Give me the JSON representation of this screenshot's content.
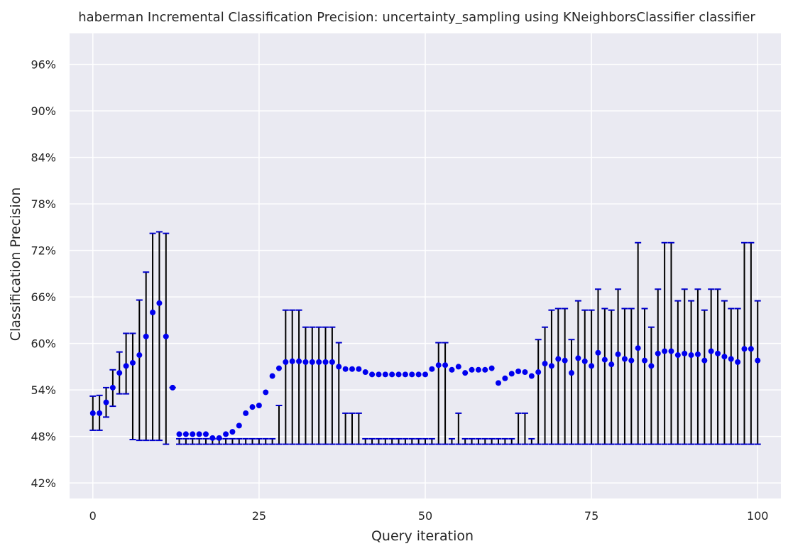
{
  "chart_data": {
    "type": "scatter",
    "title": "haberman Incremental Classification Precision: uncertainty_sampling using KNeighborsClassifier classifier",
    "xlabel": "Query iteration",
    "ylabel": "Classification Precision",
    "xlim": [
      -3.5,
      103.5
    ],
    "ylim": [
      0.4,
      1.0
    ],
    "xticks": [
      0,
      25,
      50,
      75,
      100
    ],
    "yticks": [
      0.42,
      0.48,
      0.54,
      0.6,
      0.66,
      0.72,
      0.78,
      0.84,
      0.9,
      0.96
    ],
    "ytick_format": "percent",
    "grid": true,
    "legend": "none",
    "colors": {
      "background": "#eaeaf2",
      "grid": "#ffffff",
      "marker": "#0000ee",
      "errorbar": "#000000",
      "cap": "#0000cc"
    },
    "series": [
      {
        "x": [
          0,
          1,
          2,
          3,
          4,
          5,
          6,
          7,
          8,
          9,
          10,
          11,
          12,
          13,
          14,
          15,
          16,
          17,
          18,
          19,
          20,
          21,
          22,
          23,
          24,
          25,
          26,
          27,
          28,
          29,
          30,
          31,
          32,
          33,
          34,
          35,
          36,
          37,
          38,
          39,
          40,
          41,
          42,
          43,
          44,
          45,
          46,
          47,
          48,
          49,
          50,
          51,
          52,
          53,
          54,
          55,
          56,
          57,
          58,
          59,
          60,
          61,
          62,
          63,
          64,
          65,
          66,
          67,
          68,
          69,
          70,
          71,
          72,
          73,
          74,
          75,
          76,
          77,
          78,
          79,
          80,
          81,
          82,
          83,
          84,
          85,
          86,
          87,
          88,
          89,
          90,
          91,
          92,
          93,
          94,
          95,
          96,
          97,
          98,
          99,
          100
        ],
        "y": [
          0.51,
          0.51,
          0.524,
          0.543,
          0.562,
          0.571,
          0.575,
          0.585,
          0.609,
          0.64,
          0.652,
          0.609,
          0.543,
          0.483,
          0.483,
          0.483,
          0.483,
          0.483,
          0.478,
          0.478,
          0.483,
          0.486,
          0.494,
          0.51,
          0.518,
          0.52,
          0.537,
          0.558,
          0.568,
          0.576,
          0.577,
          0.577,
          0.576,
          0.576,
          0.576,
          0.576,
          0.576,
          0.57,
          0.567,
          0.567,
          0.567,
          0.563,
          0.56,
          0.56,
          0.56,
          0.56,
          0.56,
          0.56,
          0.56,
          0.56,
          0.56,
          0.567,
          0.572,
          0.572,
          0.566,
          0.57,
          0.562,
          0.566,
          0.566,
          0.566,
          0.568,
          0.549,
          0.555,
          0.561,
          0.564,
          0.563,
          0.558,
          0.563,
          0.574,
          0.571,
          0.58,
          0.578,
          0.562,
          0.581,
          0.577,
          0.571,
          0.588,
          0.579,
          0.573,
          0.586,
          0.58,
          0.578,
          0.594,
          0.578,
          0.571,
          0.587,
          0.59,
          0.59,
          0.585,
          0.587,
          0.585,
          0.586,
          0.578,
          0.59,
          0.587,
          0.583,
          0.58,
          0.576,
          0.593,
          0.593,
          0.578
        ],
        "err_lower": [
          0.488,
          0.488,
          0.505,
          0.519,
          0.535,
          0.535,
          0.476,
          0.475,
          0.475,
          0.475,
          0.475,
          0.47,
          0.543,
          0.47,
          0.47,
          0.47,
          0.47,
          0.47,
          0.47,
          0.47,
          0.47,
          0.47,
          0.47,
          0.47,
          0.47,
          0.47,
          0.47,
          0.47,
          0.47,
          0.47,
          0.47,
          0.47,
          0.47,
          0.47,
          0.47,
          0.47,
          0.47,
          0.47,
          0.47,
          0.47,
          0.47,
          0.47,
          0.47,
          0.47,
          0.47,
          0.47,
          0.47,
          0.47,
          0.47,
          0.47,
          0.47,
          0.47,
          0.47,
          0.47,
          0.47,
          0.47,
          0.47,
          0.47,
          0.47,
          0.47,
          0.47,
          0.47,
          0.47,
          0.47,
          0.47,
          0.47,
          0.47,
          0.47,
          0.47,
          0.47,
          0.47,
          0.47,
          0.47,
          0.47,
          0.47,
          0.47,
          0.47,
          0.47,
          0.47,
          0.47,
          0.47,
          0.47,
          0.47,
          0.47,
          0.47,
          0.47,
          0.47,
          0.47,
          0.47,
          0.47,
          0.47,
          0.47,
          0.47,
          0.47,
          0.47,
          0.47,
          0.47,
          0.47,
          0.47,
          0.47,
          0.47
        ],
        "err_upper": [
          0.532,
          0.533,
          0.543,
          0.566,
          0.589,
          0.613,
          0.613,
          0.656,
          0.692,
          0.742,
          0.744,
          0.742,
          0.543,
          0.477,
          0.477,
          0.477,
          0.477,
          0.477,
          0.477,
          0.477,
          0.477,
          0.477,
          0.477,
          0.477,
          0.477,
          0.477,
          0.477,
          0.477,
          0.52,
          0.643,
          0.643,
          0.643,
          0.621,
          0.621,
          0.621,
          0.621,
          0.621,
          0.601,
          0.51,
          0.51,
          0.51,
          0.477,
          0.477,
          0.477,
          0.477,
          0.477,
          0.477,
          0.477,
          0.477,
          0.477,
          0.477,
          0.477,
          0.601,
          0.601,
          0.477,
          0.51,
          0.477,
          0.477,
          0.477,
          0.477,
          0.477,
          0.477,
          0.477,
          0.477,
          0.51,
          0.51,
          0.477,
          0.605,
          0.621,
          0.643,
          0.645,
          0.645,
          0.605,
          0.655,
          0.643,
          0.643,
          0.67,
          0.645,
          0.643,
          0.67,
          0.645,
          0.645,
          0.73,
          0.645,
          0.621,
          0.67,
          0.73,
          0.73,
          0.655,
          0.67,
          0.655,
          0.67,
          0.643,
          0.67,
          0.67,
          0.655,
          0.645,
          0.645,
          0.73,
          0.73,
          0.655
        ]
      }
    ]
  }
}
